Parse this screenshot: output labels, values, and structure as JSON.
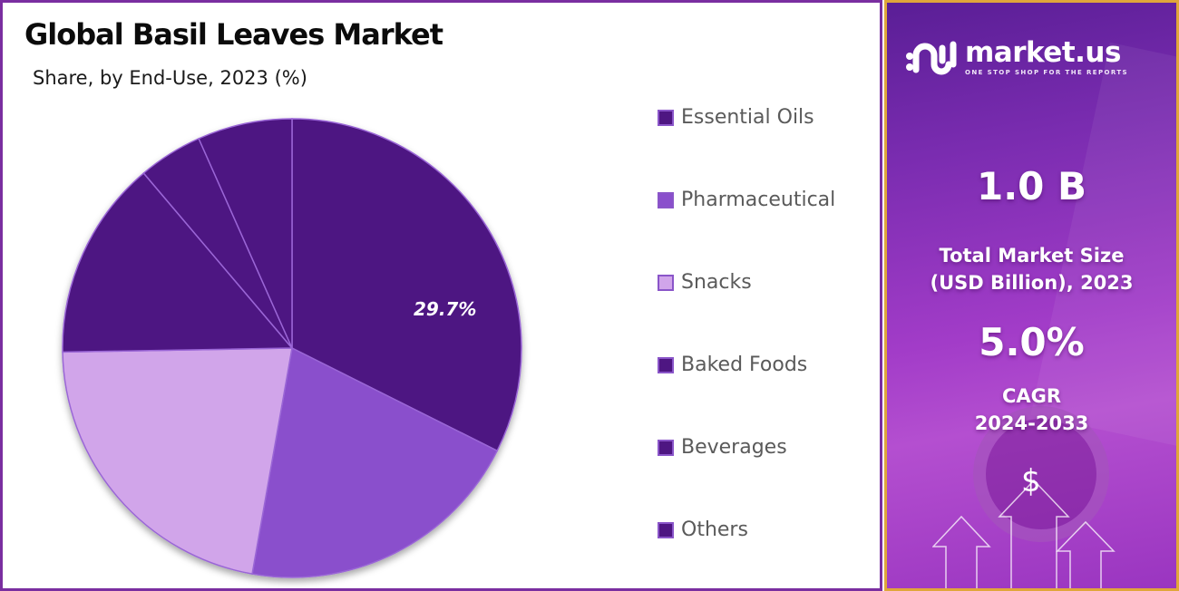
{
  "header": {
    "title": "Global Basil Leaves Market",
    "subtitle": "Share, by End-Use, 2023 (%)"
  },
  "colors": {
    "dark_purple": "#4e1682",
    "medium_purple": "#8a4fcc",
    "light_purple": "#d1a5ea",
    "slice_border": "#9a66d6",
    "left_border": "#7a2ea0",
    "right_border": "#e0a63a",
    "legend_text": "#5a5a5a"
  },
  "pie": {
    "highlight_label": "29.7%"
  },
  "legend": {
    "items": [
      {
        "label": "Essential Oils",
        "color": "#4e1682"
      },
      {
        "label": "Pharmaceutical",
        "color": "#8a4fcc"
      },
      {
        "label": "Snacks",
        "color": "#d1a5ea"
      },
      {
        "label": "Baked Foods",
        "color": "#4e1682"
      },
      {
        "label": "Beverages",
        "color": "#4e1682"
      },
      {
        "label": "Others",
        "color": "#4e1682"
      }
    ]
  },
  "sidebar": {
    "brand_name": "market.us",
    "brand_tagline": "ONE STOP SHOP FOR THE REPORTS",
    "market_size_value": "1.0 B",
    "market_size_label_line1": "Total Market Size",
    "market_size_label_line2": "(USD Billion), 2023",
    "cagr_value": "5.0%",
    "cagr_label_line1": "CAGR",
    "cagr_label_line2": "2024-2033",
    "dollar_symbol": "$"
  },
  "chart_data": {
    "type": "pie",
    "title": "Global Basil Leaves Market",
    "subtitle": "Share, by End-Use, 2023 (%)",
    "categories": [
      "Essential Oils",
      "Pharmaceutical",
      "Snacks",
      "Baked Foods",
      "Beverages",
      "Others"
    ],
    "values": [
      29.7,
      20.4,
      21.9,
      14.1,
      4.5,
      6.7
    ],
    "labeled_values": {
      "Essential Oils": 29.7
    },
    "colors": [
      "#4e1682",
      "#8a4fcc",
      "#d1a5ea",
      "#4e1682",
      "#4e1682",
      "#4e1682"
    ],
    "start_angle_deg": 0,
    "direction": "clockwise",
    "legend_position": "right",
    "xlabel": "",
    "ylabel": ""
  }
}
